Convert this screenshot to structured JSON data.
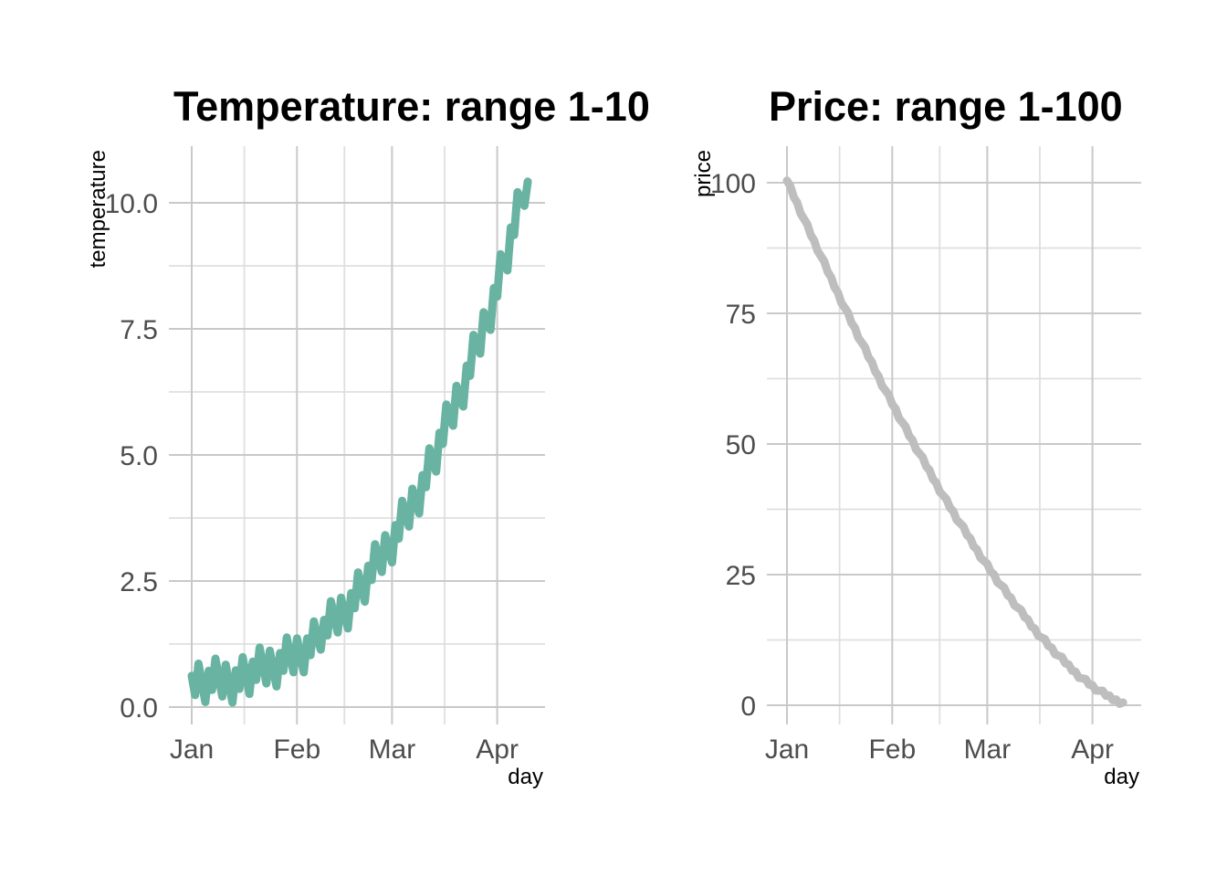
{
  "figure": {
    "background": "#ffffff",
    "description": "Two line charts side by side"
  },
  "chart_data": [
    {
      "type": "line",
      "title": "Temperature: range 1-10",
      "xlabel": "day",
      "ylabel": "temperature",
      "series_name": "temperature",
      "line_color": "#69b3a2",
      "grid": true,
      "legend": false,
      "xlim_days": [
        -5.5,
        104.5
      ],
      "ylim": [
        -0.35,
        11.1
      ],
      "x_major_ticks": [
        {
          "day": 0,
          "label": "Jan"
        },
        {
          "day": 31,
          "label": "Feb"
        },
        {
          "day": 59,
          "label": "Mar"
        },
        {
          "day": 90,
          "label": "Apr"
        }
      ],
      "x_minor_breaks": [
        15.5,
        45,
        74.5
      ],
      "y_major_ticks": [
        {
          "value": 0,
          "label": "0.0"
        },
        {
          "value": 2.5,
          "label": "2.5"
        },
        {
          "value": 5,
          "label": "5.0"
        },
        {
          "value": 7.5,
          "label": "7.5"
        },
        {
          "value": 10,
          "label": "10.0"
        }
      ],
      "y_minor_breaks": [
        1.25,
        3.75,
        6.25,
        8.75
      ],
      "x": [
        0,
        1,
        2,
        3,
        4,
        5,
        6,
        7,
        8,
        9,
        10,
        11,
        12,
        13,
        14,
        15,
        16,
        17,
        18,
        19,
        20,
        21,
        22,
        23,
        24,
        25,
        26,
        27,
        28,
        29,
        30,
        31,
        32,
        33,
        34,
        35,
        36,
        37,
        38,
        39,
        40,
        41,
        42,
        43,
        44,
        45,
        46,
        47,
        48,
        49,
        50,
        51,
        52,
        53,
        54,
        55,
        56,
        57,
        58,
        59,
        60,
        61,
        62,
        63,
        64,
        65,
        66,
        67,
        68,
        69,
        70,
        71,
        72,
        73,
        74,
        75,
        76,
        77,
        78,
        79,
        80,
        81,
        82,
        83,
        84,
        85,
        86,
        87,
        88,
        89,
        90,
        91,
        92,
        93,
        94,
        95,
        96,
        97,
        98,
        99
      ],
      "y": [
        0.62,
        0.24,
        0.86,
        0.48,
        0.1,
        0.72,
        0.34,
        0.96,
        0.59,
        0.21,
        0.84,
        0.47,
        0.09,
        0.73,
        0.36,
        0.99,
        0.63,
        0.26,
        0.9,
        0.54,
        1.18,
        0.82,
        0.47,
        1.12,
        0.76,
        0.41,
        1.07,
        0.72,
        1.38,
        1.03,
        0.69,
        1.36,
        1.02,
        0.69,
        1.36,
        1.03,
        1.7,
        1.38,
        1.14,
        1.73,
        1.42,
        2.1,
        1.79,
        1.48,
        2.17,
        1.86,
        1.56,
        2.26,
        1.96,
        2.67,
        2.38,
        2.09,
        2.8,
        2.52,
        3.23,
        2.96,
        2.68,
        3.41,
        3.14,
        2.87,
        3.61,
        3.34,
        4.09,
        3.83,
        3.58,
        4.33,
        4.08,
        3.84,
        4.6,
        4.36,
        5.13,
        4.9,
        4.67,
        5.44,
        5.22,
        6.0,
        5.79,
        5.58,
        6.37,
        6.17,
        5.96,
        6.77,
        6.57,
        7.38,
        7.19,
        7.01,
        7.83,
        7.65,
        7.48,
        8.31,
        8.14,
        8.98,
        8.82,
        8.66,
        9.51,
        9.36,
        10.21,
        10.07,
        9.94,
        10.42
      ]
    },
    {
      "type": "line",
      "title": "Price: range 1-100",
      "xlabel": "day",
      "ylabel": "price",
      "series_name": "price",
      "line_color": "#bebebe",
      "grid": true,
      "legend": false,
      "xlim_days": [
        -5.5,
        104.5
      ],
      "ylim": [
        -3.5,
        107
      ],
      "x_major_ticks": [
        {
          "day": 0,
          "label": "Jan"
        },
        {
          "day": 31,
          "label": "Feb"
        },
        {
          "day": 59,
          "label": "Mar"
        },
        {
          "day": 90,
          "label": "Apr"
        }
      ],
      "x_minor_breaks": [
        15.5,
        45,
        74.5
      ],
      "y_major_ticks": [
        {
          "value": 0,
          "label": "0"
        },
        {
          "value": 25,
          "label": "25"
        },
        {
          "value": 50,
          "label": "50"
        },
        {
          "value": 75,
          "label": "75"
        },
        {
          "value": 100,
          "label": "100"
        }
      ],
      "y_minor_breaks": [
        12.5,
        37.5,
        62.5,
        87.5
      ],
      "x": [
        0,
        1,
        2,
        3,
        4,
        5,
        6,
        7,
        8,
        9,
        10,
        11,
        12,
        13,
        14,
        15,
        16,
        17,
        18,
        19,
        20,
        21,
        22,
        23,
        24,
        25,
        26,
        27,
        28,
        29,
        30,
        31,
        32,
        33,
        34,
        35,
        36,
        37,
        38,
        39,
        40,
        41,
        42,
        43,
        44,
        45,
        46,
        47,
        48,
        49,
        50,
        51,
        52,
        53,
        54,
        55,
        56,
        57,
        58,
        59,
        60,
        61,
        62,
        63,
        64,
        65,
        66,
        67,
        68,
        69,
        70,
        71,
        72,
        73,
        74,
        75,
        76,
        77,
        78,
        79,
        80,
        81,
        82,
        83,
        84,
        85,
        86,
        87,
        88,
        89,
        90,
        91,
        92,
        93,
        94,
        95,
        96,
        97,
        98,
        99
      ],
      "y": [
        100.41,
        99.33,
        97.26,
        96.19,
        94.13,
        93.08,
        92.04,
        90.0,
        88.97,
        86.95,
        85.94,
        84.93,
        82.94,
        81.95,
        79.96,
        79.0,
        77.03,
        76.08,
        75.12,
        73.18,
        72.25,
        70.33,
        69.42,
        68.51,
        66.62,
        65.72,
        63.84,
        62.97,
        61.1,
        60.26,
        59.41,
        57.57,
        56.74,
        54.92,
        54.12,
        53.31,
        51.53,
        50.74,
        48.97,
        48.21,
        47.46,
        45.72,
        44.98,
        43.25,
        42.55,
        40.84,
        40.15,
        39.46,
        37.8,
        37.13,
        35.48,
        34.84,
        34.21,
        32.59,
        31.98,
        30.39,
        29.8,
        28.22,
        27.66,
        27.1,
        25.57,
        25.04,
        23.51,
        23.02,
        22.52,
        21.05,
        20.58,
        19.13,
        18.68,
        18.25,
        16.84,
        16.44,
        15.06,
        14.68,
        13.32,
        12.98,
        12.65,
        11.34,
        11.04,
        9.76,
        9.49,
        9.24,
        8.02,
        7.8,
        6.61,
        6.43,
        5.27,
        5.14,
        5.02,
        3.93,
        3.85,
        2.81,
        2.78,
        2.78,
        1.82,
        1.88,
        0.98,
        1.11,
        0.28,
        0.52
      ]
    }
  ],
  "style": {
    "grid_major_color": "#c9c9c9",
    "grid_minor_color": "#dfdfdf",
    "tick_label_color": "#4d4d4d",
    "title_color": "#000000",
    "axis_title_color": "#000000"
  }
}
